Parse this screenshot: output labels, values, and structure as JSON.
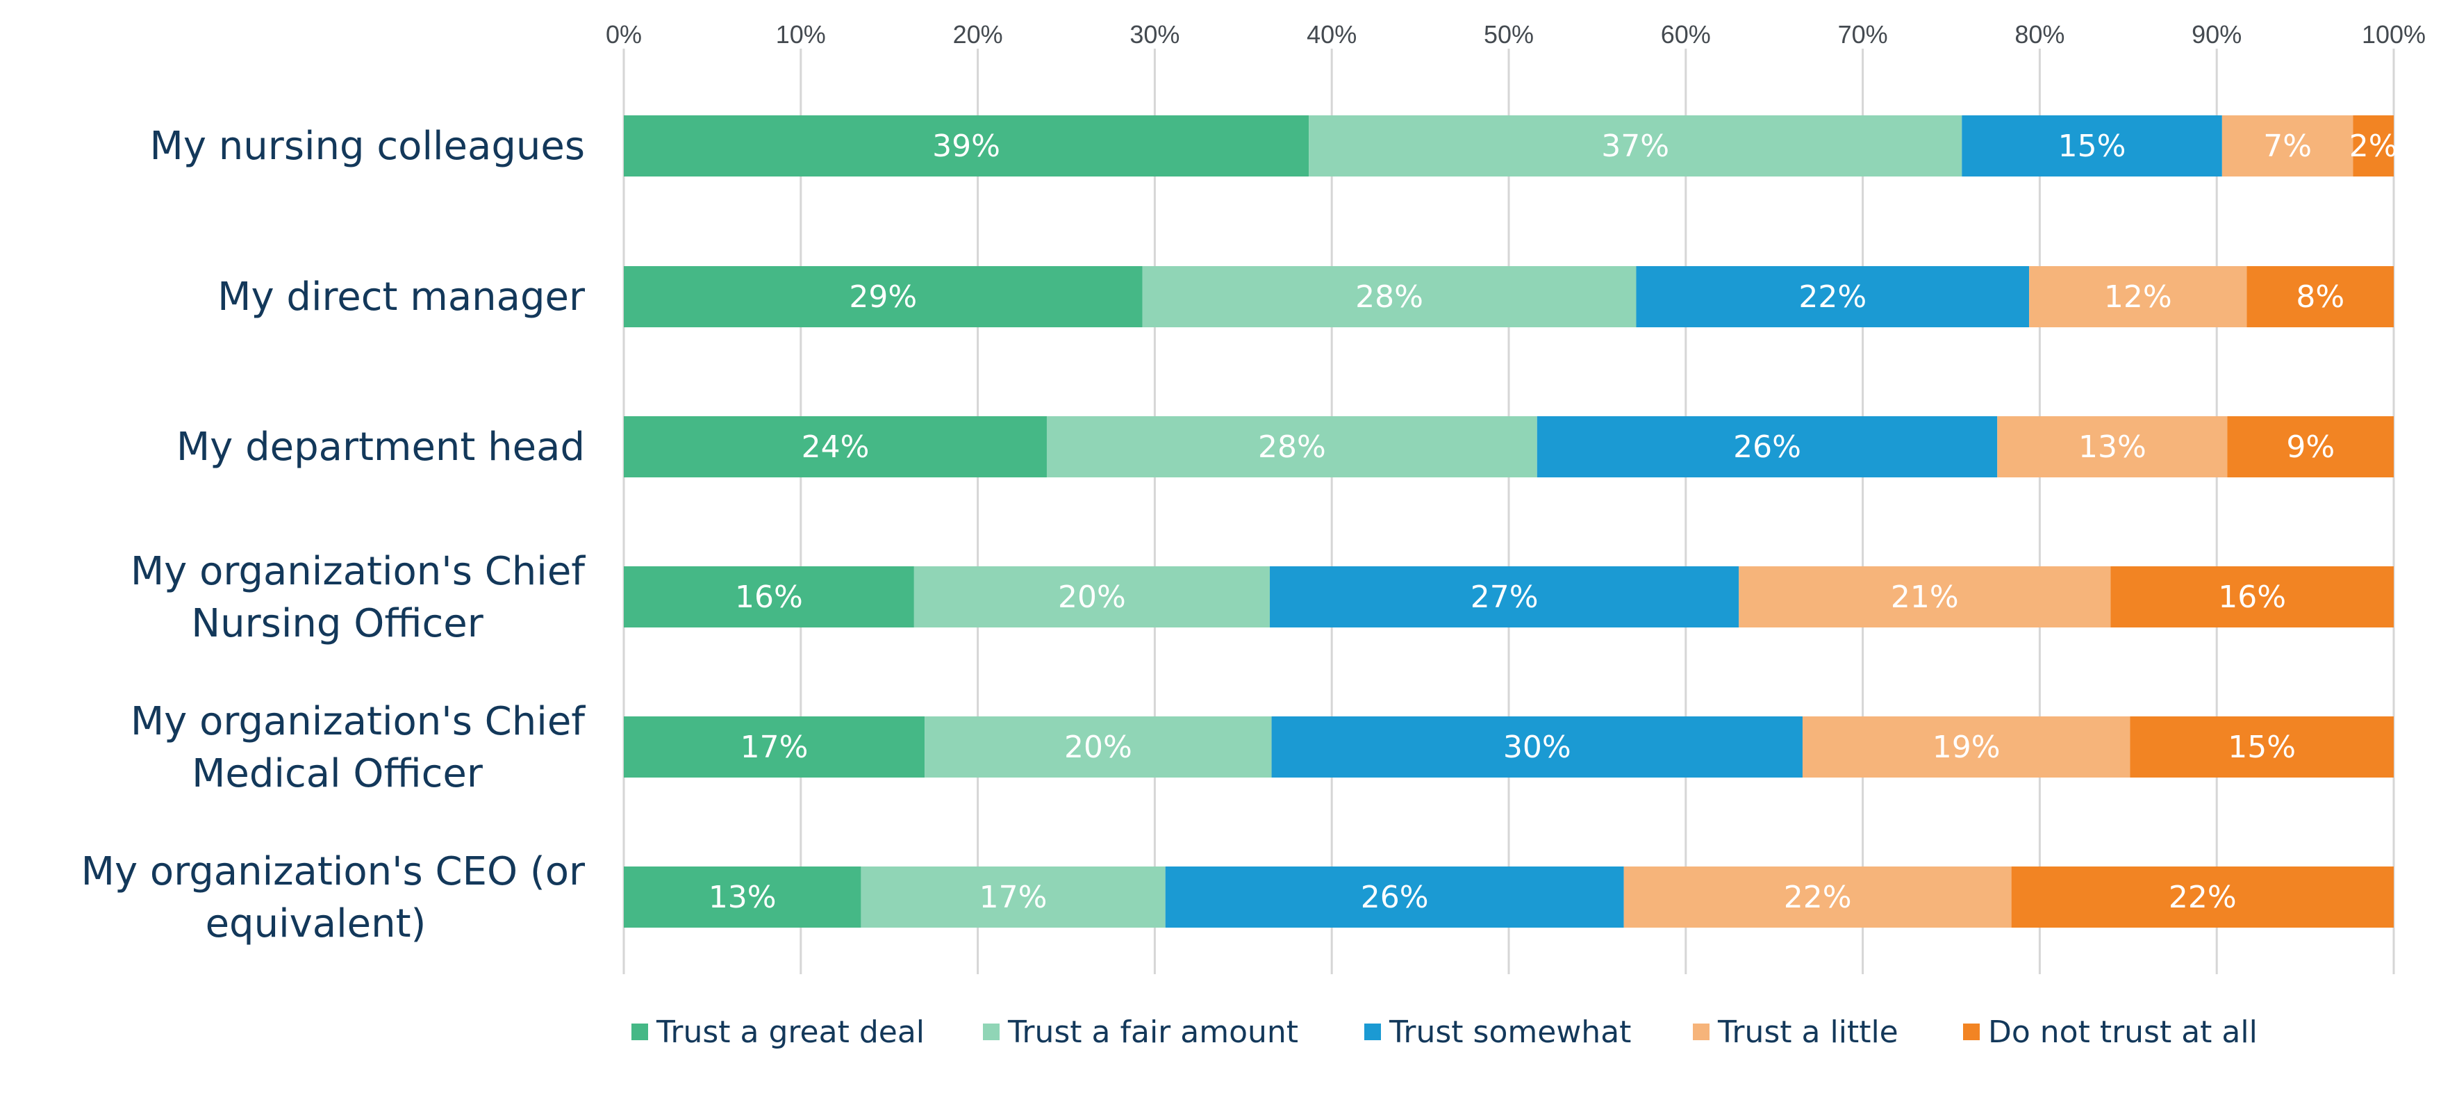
{
  "chart_data": {
    "type": "bar",
    "orientation": "horizontal",
    "stacked": true,
    "percent_axis": true,
    "title": "",
    "xlabel": "",
    "ylabel": "",
    "xlim": [
      0,
      100
    ],
    "x_ticks": [
      "0%",
      "10%",
      "20%",
      "30%",
      "40%",
      "50%",
      "60%",
      "70%",
      "80%",
      "90%",
      "100%"
    ],
    "x_axis_position": "top",
    "grid": true,
    "legend_position": "bottom",
    "categories": [
      "My nursing colleagues",
      "My direct manager",
      "My department head",
      "My organization's Chief Nursing Officer",
      "My organization's Chief Medical Officer",
      "My organization's CEO (or equivalent)"
    ],
    "series": [
      {
        "name": "Trust a great deal",
        "color": "#45b886",
        "values": [
          38.7,
          29.3,
          23.9,
          16.4,
          17.0,
          13.4
        ],
        "labels": [
          "39%",
          "29%",
          "24%",
          "16%",
          "17%",
          "13%"
        ]
      },
      {
        "name": "Trust a fair amount",
        "color": "#90d5b6",
        "values": [
          36.9,
          27.9,
          27.7,
          20.1,
          19.6,
          17.2
        ],
        "labels": [
          "37%",
          "28%",
          "28%",
          "20%",
          "20%",
          "17%"
        ]
      },
      {
        "name": "Trust somewhat",
        "color": "#1b9ad3",
        "values": [
          14.7,
          22.2,
          26.0,
          26.5,
          30.0,
          25.9
        ],
        "labels": [
          "15%",
          "22%",
          "26%",
          "27%",
          "30%",
          "26%"
        ]
      },
      {
        "name": "Trust a little",
        "color": "#f6b47a",
        "values": [
          7.4,
          12.3,
          13.0,
          21.0,
          18.5,
          21.9
        ],
        "labels": [
          "7%",
          "12%",
          "13%",
          "21%",
          "19%",
          "22%"
        ]
      },
      {
        "name": "Do not trust at all",
        "color": "#f28423",
        "values": [
          2.3,
          8.3,
          9.4,
          16.0,
          14.9,
          21.6
        ],
        "labels": [
          "2%",
          "8%",
          "9%",
          "16%",
          "15%",
          "22%"
        ]
      }
    ]
  }
}
